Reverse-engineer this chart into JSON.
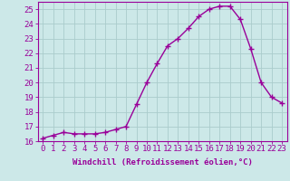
{
  "x": [
    0,
    1,
    2,
    3,
    4,
    5,
    6,
    7,
    8,
    9,
    10,
    11,
    12,
    13,
    14,
    15,
    16,
    17,
    18,
    19,
    20,
    21,
    22,
    23
  ],
  "y": [
    16.2,
    16.4,
    16.6,
    16.5,
    16.5,
    16.5,
    16.6,
    16.8,
    17.0,
    18.5,
    20.0,
    21.3,
    22.5,
    23.0,
    23.7,
    24.5,
    25.0,
    25.2,
    25.2,
    24.3,
    22.3,
    20.0,
    19.0,
    18.6
  ],
  "line_color": "#990099",
  "marker": "+",
  "marker_size": 4,
  "marker_color": "#990099",
  "bg_color": "#cce8e8",
  "grid_color": "#aacccc",
  "axis_color": "#990099",
  "tick_color": "#990099",
  "xlabel": "Windchill (Refroidissement éolien,°C)",
  "ylabel": "",
  "xlim": [
    -0.5,
    23.5
  ],
  "ylim": [
    16,
    25.5
  ],
  "yticks": [
    16,
    17,
    18,
    19,
    20,
    21,
    22,
    23,
    24,
    25
  ],
  "xticks": [
    0,
    1,
    2,
    3,
    4,
    5,
    6,
    7,
    8,
    9,
    10,
    11,
    12,
    13,
    14,
    15,
    16,
    17,
    18,
    19,
    20,
    21,
    22,
    23
  ],
  "xlabel_fontsize": 6.5,
  "tick_fontsize": 6.5,
  "line_width": 1.0
}
